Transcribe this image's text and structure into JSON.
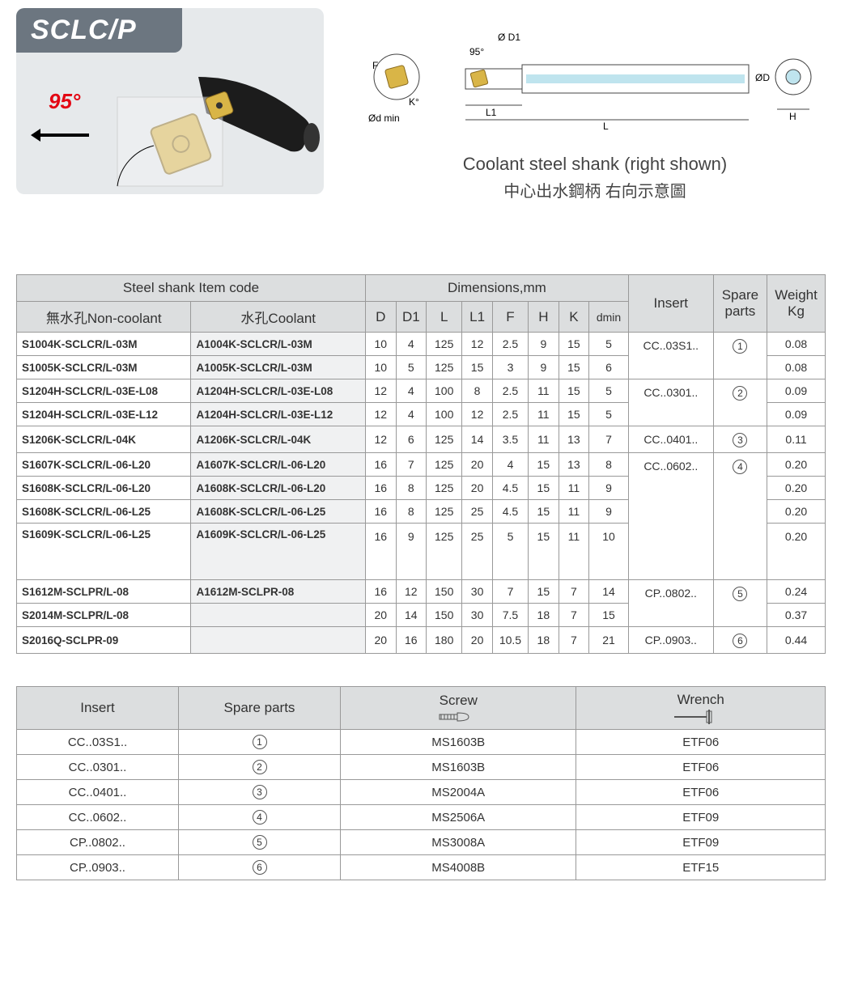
{
  "header": {
    "title": "SCLC/P",
    "angle_label": "95°",
    "diagram_labels": {
      "d_min": "Ød min",
      "D1": "Ø D1",
      "F": "F",
      "K": "K°",
      "angle": "95°",
      "L1": "L1",
      "L": "L",
      "D": "ØD",
      "H": "H"
    },
    "caption_en": "Coolant steel shank (right shown)",
    "caption_cn": "中心出水鋼柄 右向示意圖"
  },
  "main_table": {
    "group_headers": {
      "item_code": "Steel shank Item code",
      "dimensions": "Dimensions,mm",
      "insert": "Insert",
      "spare": "Spare parts",
      "weight": "Weight Kg"
    },
    "sub_headers": {
      "noncoolant": "無水孔Non-coolant",
      "coolant": "水孔Coolant",
      "D": "D",
      "D1": "D1",
      "L": "L",
      "L1": "L1",
      "F": "F",
      "H": "H",
      "K": "K",
      "dmin": "dmin"
    },
    "rows": [
      {
        "nc": "S1004K-SCLCR/L-03M",
        "c": "A1004K-SCLCR/L-03M",
        "D": "10",
        "D1": "4",
        "L": "125",
        "L1": "12",
        "F": "2.5",
        "H": "9",
        "K": "15",
        "dmin": "5",
        "insert": "CC..03S1..",
        "spare": "1",
        "w": "0.08"
      },
      {
        "nc": "S1005K-SCLCR/L-03M",
        "c": "A1005K-SCLCR/L-03M",
        "D": "10",
        "D1": "5",
        "L": "125",
        "L1": "15",
        "F": "3",
        "H": "9",
        "K": "15",
        "dmin": "6",
        "insert": "",
        "spare": "",
        "w": "0.08"
      },
      {
        "nc": "S1204H-SCLCR/L-03E-L08",
        "c": "A1204H-SCLCR/L-03E-L08",
        "D": "12",
        "D1": "4",
        "L": "100",
        "L1": "8",
        "F": "2.5",
        "H": "11",
        "K": "15",
        "dmin": "5",
        "insert": "CC..0301..",
        "spare": "2",
        "w": "0.09"
      },
      {
        "nc": "S1204H-SCLCR/L-03E-L12",
        "c": "A1204H-SCLCR/L-03E-L12",
        "D": "12",
        "D1": "4",
        "L": "100",
        "L1": "12",
        "F": "2.5",
        "H": "11",
        "K": "15",
        "dmin": "5",
        "insert": "",
        "spare": "",
        "w": "0.09"
      },
      {
        "nc": "S1206K-SCLCR/L-04K",
        "c": "A1206K-SCLCR/L-04K",
        "D": "12",
        "D1": "6",
        "L": "125",
        "L1": "14",
        "F": "3.5",
        "H": "11",
        "K": "13",
        "dmin": "7",
        "insert": "CC..0401..",
        "spare": "3",
        "w": "0.11"
      },
      {
        "nc": "S1607K-SCLCR/L-06-L20",
        "c": "A1607K-SCLCR/L-06-L20",
        "D": "16",
        "D1": "7",
        "L": "125",
        "L1": "20",
        "F": "4",
        "H": "15",
        "K": "13",
        "dmin": "8",
        "insert": "CC..0602..",
        "spare": "4",
        "w": "0.20"
      },
      {
        "nc": "S1608K-SCLCR/L-06-L20",
        "c": "A1608K-SCLCR/L-06-L20",
        "D": "16",
        "D1": "8",
        "L": "125",
        "L1": "20",
        "F": "4.5",
        "H": "15",
        "K": "11",
        "dmin": "9",
        "insert": "",
        "spare": "",
        "w": "0.20"
      },
      {
        "nc": "S1608K-SCLCR/L-06-L25",
        "c": "A1608K-SCLCR/L-06-L25",
        "D": "16",
        "D1": "8",
        "L": "125",
        "L1": "25",
        "F": "4.5",
        "H": "15",
        "K": "11",
        "dmin": "9",
        "insert": "",
        "spare": "",
        "w": "0.20"
      },
      {
        "nc": "S1609K-SCLCR/L-06-L25",
        "c": "A1609K-SCLCR/L-06-L25",
        "D": "16",
        "D1": "9",
        "L": "125",
        "L1": "25",
        "F": "5",
        "H": "15",
        "K": "11",
        "dmin": "10",
        "insert": "",
        "spare": "",
        "w": "0.20",
        "tall": true
      },
      {
        "nc": "S1612M-SCLPR/L-08",
        "c": "A1612M-SCLPR-08",
        "D": "16",
        "D1": "12",
        "L": "150",
        "L1": "30",
        "F": "7",
        "H": "15",
        "K": "7",
        "dmin": "14",
        "insert": "CP..0802..",
        "spare": "5",
        "w": "0.24"
      },
      {
        "nc": "S2014M-SCLPR/L-08",
        "c": "",
        "D": "20",
        "D1": "14",
        "L": "150",
        "L1": "30",
        "F": "7.5",
        "H": "18",
        "K": "7",
        "dmin": "15",
        "insert": "",
        "spare": "",
        "w": "0.37"
      },
      {
        "nc": "S2016Q-SCLPR-09",
        "c": "",
        "D": "20",
        "D1": "16",
        "L": "180",
        "L1": "20",
        "F": "10.5",
        "H": "18",
        "K": "7",
        "dmin": "21",
        "insert": "CP..0903..",
        "spare": "6",
        "w": "0.44"
      }
    ],
    "insert_spans": [
      2,
      2,
      1,
      4,
      2,
      1
    ],
    "spare_spans": [
      2,
      2,
      1,
      4,
      2,
      1
    ]
  },
  "parts_table": {
    "headers": {
      "insert": "Insert",
      "spare": "Spare parts",
      "screw": "Screw",
      "wrench": "Wrench"
    },
    "rows": [
      {
        "insert": "CC..03S1..",
        "spare": "1",
        "screw": "MS1603B",
        "wrench": "ETF06"
      },
      {
        "insert": "CC..0301..",
        "spare": "2",
        "screw": "MS1603B",
        "wrench": "ETF06"
      },
      {
        "insert": "CC..0401..",
        "spare": "3",
        "screw": "MS2004A",
        "wrench": "ETF06"
      },
      {
        "insert": "CC..0602..",
        "spare": "4",
        "screw": "MS2506A",
        "wrench": "ETF09"
      },
      {
        "insert": "CP..0802..",
        "spare": "5",
        "screw": "MS3008A",
        "wrench": "ETF09"
      },
      {
        "insert": "CP..0903..",
        "spare": "6",
        "screw": "MS4008B",
        "wrench": "ETF15"
      }
    ]
  },
  "colors": {
    "band": "#6c7680",
    "header_bg": "#dcdedf",
    "grey_cell": "#f0f1f2",
    "red": "#e30613",
    "gold": "#d9b547",
    "steel": "#2a2a2a",
    "coolant": "#bfe4ee"
  }
}
